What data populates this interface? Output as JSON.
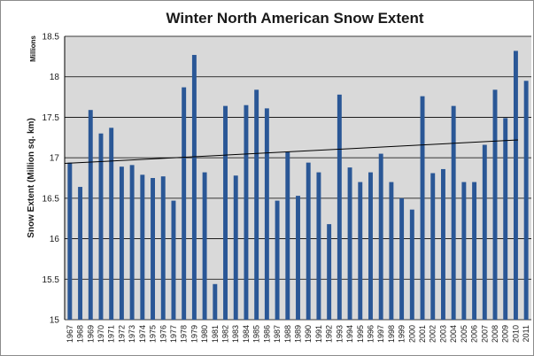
{
  "chart_data": {
    "type": "bar",
    "title": "Winter North American Snow Extent",
    "ylabel": "Snow Extent (Million sq. km)",
    "units_label": "Millions",
    "xlabel": "",
    "ylim": [
      15,
      18.5
    ],
    "yticks": [
      "15",
      "15.5",
      "16",
      "16.5",
      "17",
      "17.5",
      "18",
      "18.5"
    ],
    "grid": true,
    "plot_background": "#d9d9d9",
    "bar_color": "#2a5796",
    "trend_color": "#000000",
    "categories": [
      "1967",
      "1968",
      "1969",
      "1970",
      "1971",
      "1972",
      "1973",
      "1974",
      "1975",
      "1976",
      "1977",
      "1978",
      "1979",
      "1980",
      "1981",
      "1982",
      "1983",
      "1984",
      "1985",
      "1986",
      "1987",
      "1988",
      "1989",
      "1990",
      "1991",
      "1992",
      "1993",
      "1994",
      "1995",
      "1996",
      "1997",
      "1998",
      "1999",
      "2000",
      "2001",
      "2002",
      "2003",
      "2004",
      "2005",
      "2006",
      "2007",
      "2008",
      "2009",
      "2010",
      "2011"
    ],
    "series": [
      {
        "values": [
          16.94,
          16.64,
          17.59,
          17.3,
          17.37,
          16.89,
          16.91,
          16.79,
          16.75,
          16.77,
          16.47,
          17.87,
          18.27,
          16.82,
          15.44,
          17.64,
          16.78,
          17.65,
          17.84,
          17.61,
          16.47,
          17.07,
          16.53,
          16.94,
          16.82,
          16.18,
          17.78,
          16.88,
          16.7,
          16.82,
          17.05,
          16.7,
          16.5,
          16.36,
          17.76,
          16.81,
          16.86,
          17.64,
          16.7,
          16.7,
          17.16,
          17.84,
          17.49,
          18.32,
          17.95
        ]
      }
    ],
    "trend": {
      "start": 16.93,
      "end": 17.22
    }
  }
}
